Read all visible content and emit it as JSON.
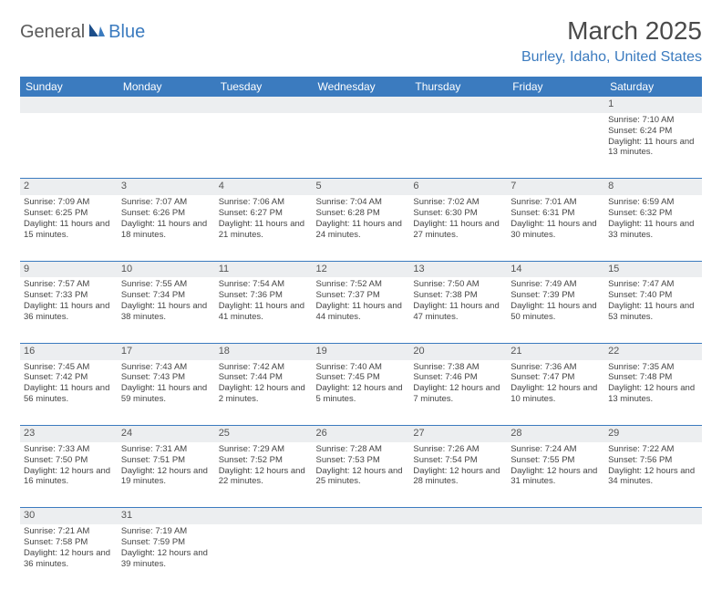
{
  "logo": {
    "part1": "General",
    "part2": "Blue"
  },
  "title": "March 2025",
  "location": "Burley, Idaho, United States",
  "colors": {
    "header_bg": "#3b7bbf",
    "header_text": "#ffffff",
    "daynum_bg": "#eceef0",
    "row_divider": "#3b7bbf",
    "logo_gray": "#5a5a5a",
    "logo_blue": "#3b7bbf",
    "body_text": "#444444"
  },
  "day_headers": [
    "Sunday",
    "Monday",
    "Tuesday",
    "Wednesday",
    "Thursday",
    "Friday",
    "Saturday"
  ],
  "weeks": [
    [
      null,
      null,
      null,
      null,
      null,
      null,
      {
        "n": "1",
        "sr": "7:10 AM",
        "ss": "6:24 PM",
        "dl": "11 hours and 13 minutes."
      }
    ],
    [
      {
        "n": "2",
        "sr": "7:09 AM",
        "ss": "6:25 PM",
        "dl": "11 hours and 15 minutes."
      },
      {
        "n": "3",
        "sr": "7:07 AM",
        "ss": "6:26 PM",
        "dl": "11 hours and 18 minutes."
      },
      {
        "n": "4",
        "sr": "7:06 AM",
        "ss": "6:27 PM",
        "dl": "11 hours and 21 minutes."
      },
      {
        "n": "5",
        "sr": "7:04 AM",
        "ss": "6:28 PM",
        "dl": "11 hours and 24 minutes."
      },
      {
        "n": "6",
        "sr": "7:02 AM",
        "ss": "6:30 PM",
        "dl": "11 hours and 27 minutes."
      },
      {
        "n": "7",
        "sr": "7:01 AM",
        "ss": "6:31 PM",
        "dl": "11 hours and 30 minutes."
      },
      {
        "n": "8",
        "sr": "6:59 AM",
        "ss": "6:32 PM",
        "dl": "11 hours and 33 minutes."
      }
    ],
    [
      {
        "n": "9",
        "sr": "7:57 AM",
        "ss": "7:33 PM",
        "dl": "11 hours and 36 minutes."
      },
      {
        "n": "10",
        "sr": "7:55 AM",
        "ss": "7:34 PM",
        "dl": "11 hours and 38 minutes."
      },
      {
        "n": "11",
        "sr": "7:54 AM",
        "ss": "7:36 PM",
        "dl": "11 hours and 41 minutes."
      },
      {
        "n": "12",
        "sr": "7:52 AM",
        "ss": "7:37 PM",
        "dl": "11 hours and 44 minutes."
      },
      {
        "n": "13",
        "sr": "7:50 AM",
        "ss": "7:38 PM",
        "dl": "11 hours and 47 minutes."
      },
      {
        "n": "14",
        "sr": "7:49 AM",
        "ss": "7:39 PM",
        "dl": "11 hours and 50 minutes."
      },
      {
        "n": "15",
        "sr": "7:47 AM",
        "ss": "7:40 PM",
        "dl": "11 hours and 53 minutes."
      }
    ],
    [
      {
        "n": "16",
        "sr": "7:45 AM",
        "ss": "7:42 PM",
        "dl": "11 hours and 56 minutes."
      },
      {
        "n": "17",
        "sr": "7:43 AM",
        "ss": "7:43 PM",
        "dl": "11 hours and 59 minutes."
      },
      {
        "n": "18",
        "sr": "7:42 AM",
        "ss": "7:44 PM",
        "dl": "12 hours and 2 minutes."
      },
      {
        "n": "19",
        "sr": "7:40 AM",
        "ss": "7:45 PM",
        "dl": "12 hours and 5 minutes."
      },
      {
        "n": "20",
        "sr": "7:38 AM",
        "ss": "7:46 PM",
        "dl": "12 hours and 7 minutes."
      },
      {
        "n": "21",
        "sr": "7:36 AM",
        "ss": "7:47 PM",
        "dl": "12 hours and 10 minutes."
      },
      {
        "n": "22",
        "sr": "7:35 AM",
        "ss": "7:48 PM",
        "dl": "12 hours and 13 minutes."
      }
    ],
    [
      {
        "n": "23",
        "sr": "7:33 AM",
        "ss": "7:50 PM",
        "dl": "12 hours and 16 minutes."
      },
      {
        "n": "24",
        "sr": "7:31 AM",
        "ss": "7:51 PM",
        "dl": "12 hours and 19 minutes."
      },
      {
        "n": "25",
        "sr": "7:29 AM",
        "ss": "7:52 PM",
        "dl": "12 hours and 22 minutes."
      },
      {
        "n": "26",
        "sr": "7:28 AM",
        "ss": "7:53 PM",
        "dl": "12 hours and 25 minutes."
      },
      {
        "n": "27",
        "sr": "7:26 AM",
        "ss": "7:54 PM",
        "dl": "12 hours and 28 minutes."
      },
      {
        "n": "28",
        "sr": "7:24 AM",
        "ss": "7:55 PM",
        "dl": "12 hours and 31 minutes."
      },
      {
        "n": "29",
        "sr": "7:22 AM",
        "ss": "7:56 PM",
        "dl": "12 hours and 34 minutes."
      }
    ],
    [
      {
        "n": "30",
        "sr": "7:21 AM",
        "ss": "7:58 PM",
        "dl": "12 hours and 36 minutes."
      },
      {
        "n": "31",
        "sr": "7:19 AM",
        "ss": "7:59 PM",
        "dl": "12 hours and 39 minutes."
      },
      null,
      null,
      null,
      null,
      null
    ]
  ],
  "labels": {
    "sunrise": "Sunrise: ",
    "sunset": "Sunset: ",
    "daylight": "Daylight: "
  }
}
